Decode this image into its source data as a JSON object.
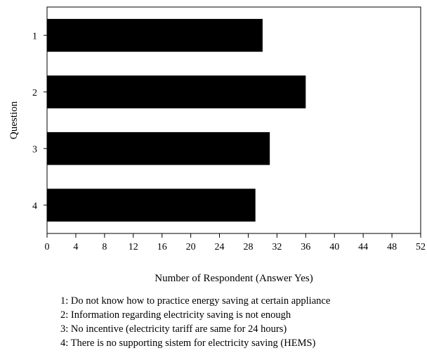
{
  "chart_data": {
    "type": "bar",
    "orientation": "horizontal",
    "title": "",
    "categories": [
      "1",
      "2",
      "3",
      "4"
    ],
    "values": [
      30,
      36,
      31,
      29
    ],
    "xlabel": "Number of Respondent (Answer Yes)",
    "ylabel": "Question",
    "xlim": [
      0,
      52
    ],
    "x_ticks": [
      0,
      4,
      8,
      12,
      16,
      20,
      24,
      28,
      32,
      36,
      40,
      44,
      48,
      52
    ],
    "grid": false,
    "bar_color": "#000000",
    "legend_position": "bottom",
    "legend": [
      "1: Do not know how to practice energy saving at certain appliance",
      "2: Information regarding electricity saving is not enough",
      "3: No incentive (electricity tariff are same for 24 hours)",
      "4: There is no supporting sistem for electricity saving (HEMS)"
    ]
  }
}
